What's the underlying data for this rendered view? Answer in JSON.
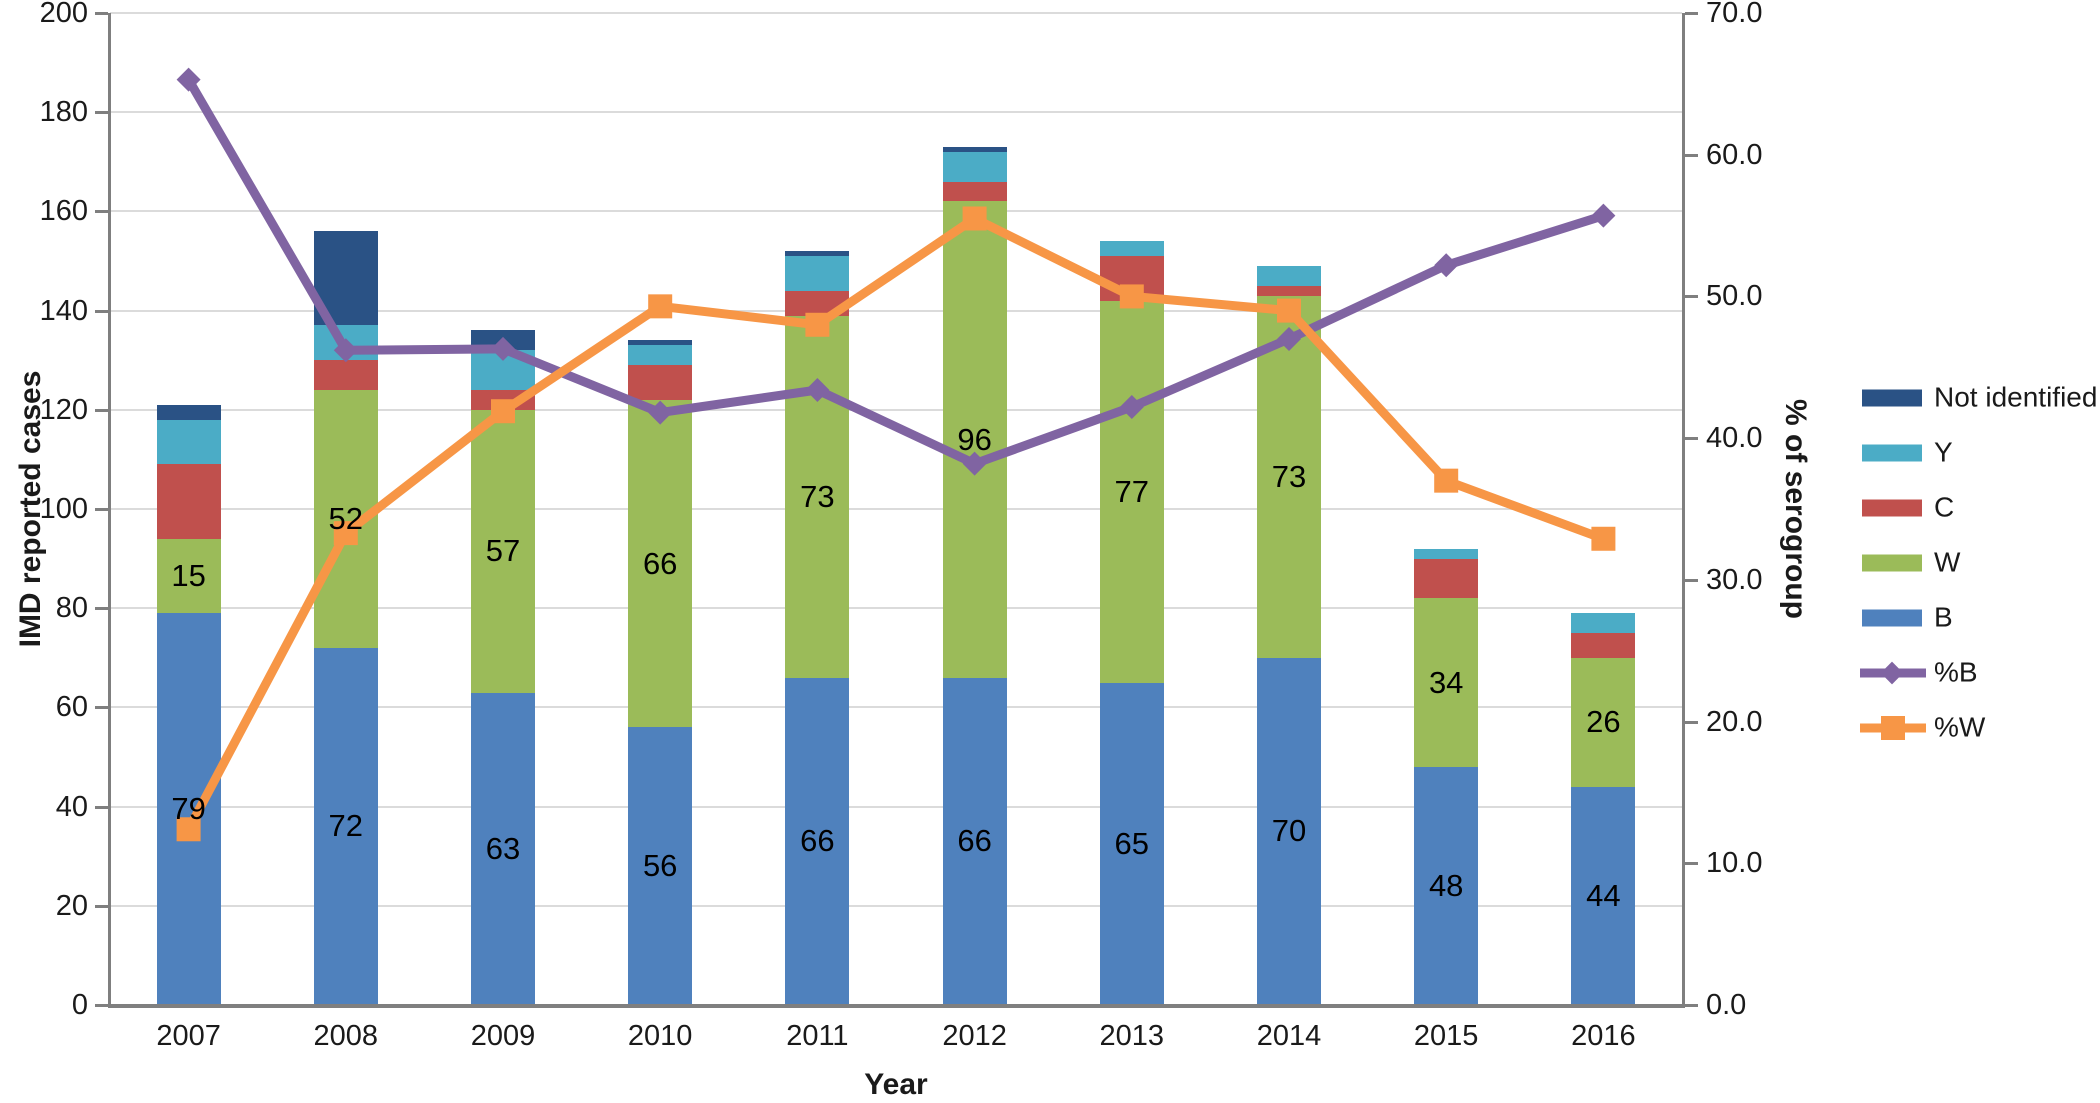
{
  "chart_data": {
    "type": "combo-stacked-bar-line",
    "title": "",
    "xlabel": "Year",
    "ylabel_left": "IMD reported cases",
    "ylabel_right": "% of serogroup",
    "categories": [
      "2007",
      "2008",
      "2009",
      "2010",
      "2011",
      "2012",
      "2013",
      "2014",
      "2015",
      "2016"
    ],
    "bar_series": [
      {
        "name": "B",
        "color": "#4F81BD",
        "values": [
          79,
          72,
          63,
          56,
          66,
          66,
          65,
          70,
          48,
          44
        ],
        "show_labels": true
      },
      {
        "name": "W",
        "color": "#9BBB59",
        "values": [
          15,
          52,
          57,
          66,
          73,
          96,
          77,
          73,
          34,
          26
        ],
        "show_labels": true
      },
      {
        "name": "C",
        "color": "#C0504D",
        "values": [
          15,
          6,
          4,
          7,
          5,
          4,
          9,
          2,
          8,
          5
        ],
        "show_labels": false
      },
      {
        "name": "Y",
        "color": "#4BACC6",
        "values": [
          9,
          7,
          8,
          4,
          7,
          6,
          3,
          4,
          2,
          4
        ],
        "show_labels": false
      },
      {
        "name": "Not identified",
        "color": "#2A5285",
        "values": [
          3,
          19,
          4,
          1,
          1,
          1,
          0,
          0,
          0,
          0
        ],
        "show_labels": false
      }
    ],
    "bar_totals": [
      121,
      156,
      136,
      134,
      152,
      173,
      154,
      149,
      92,
      79
    ],
    "line_series": [
      {
        "name": "%B",
        "color": "#8064A2",
        "marker": "diamond",
        "values": [
          65.3,
          46.2,
          46.3,
          41.8,
          43.4,
          38.2,
          42.2,
          47.0,
          52.2,
          55.7
        ]
      },
      {
        "name": "%W",
        "color": "#F79646",
        "marker": "square",
        "values": [
          12.4,
          33.3,
          41.9,
          49.3,
          48.0,
          55.5,
          50.0,
          49.0,
          37.0,
          32.9
        ]
      }
    ],
    "axis_left": {
      "min": 0,
      "max": 200,
      "step": 20
    },
    "axis_right": {
      "min": 0,
      "max": 70,
      "step": 10,
      "decimals": 1
    },
    "grid": true,
    "legend_position": "right",
    "legend": {
      "items": [
        {
          "label": "Not identified",
          "kind": "bar",
          "color": "#2A5285"
        },
        {
          "label": "Y",
          "kind": "bar",
          "color": "#4BACC6"
        },
        {
          "label": "C",
          "kind": "bar",
          "color": "#C0504D"
        },
        {
          "label": "W",
          "kind": "bar",
          "color": "#9BBB59"
        },
        {
          "label": "B",
          "kind": "bar",
          "color": "#4F81BD"
        },
        {
          "label": "%B",
          "kind": "line",
          "marker": "diamond",
          "color": "#8064A2"
        },
        {
          "label": "%W",
          "kind": "line",
          "marker": "square",
          "color": "#F79646"
        }
      ]
    }
  },
  "colors": {
    "grid": "#DBDBDB",
    "axis": "#7F7F7F",
    "text": "#1A1A1A",
    "background": "#FFFFFF"
  }
}
